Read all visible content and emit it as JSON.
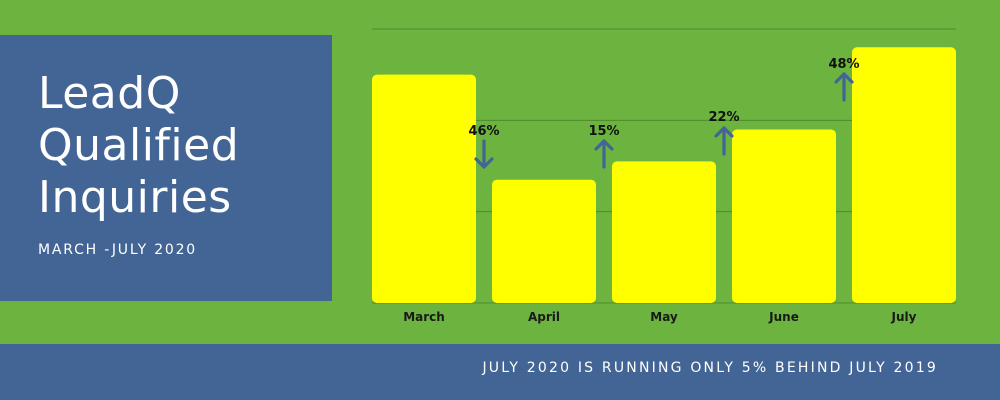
{
  "title_lines": [
    "LeadQ",
    "Qualified",
    "Inquiries"
  ],
  "subtitle": "MARCH -JULY 2020",
  "footer": "JULY 2020 IS RUNNING ONLY 5% BEHIND JULY 2019",
  "colors": {
    "background": "#6db33f",
    "panel": "#436596",
    "bar": "#ffff00",
    "arrow": "#436596",
    "gridline": "#4f8a2c"
  },
  "chart_data": {
    "type": "bar",
    "title": "LeadQ Qualified Inquiries",
    "categories": [
      "March",
      "April",
      "May",
      "June",
      "July"
    ],
    "values": [
      100,
      54,
      62,
      76,
      112
    ],
    "ylim": [
      0,
      120
    ],
    "grid": true,
    "annotations": [
      {
        "between": [
          "March",
          "April"
        ],
        "text": "46%",
        "direction": "down"
      },
      {
        "between": [
          "April",
          "May"
        ],
        "text": "15%",
        "direction": "up"
      },
      {
        "between": [
          "May",
          "June"
        ],
        "text": "22%",
        "direction": "up"
      },
      {
        "between": [
          "June",
          "July"
        ],
        "text": "48%",
        "direction": "up"
      }
    ]
  }
}
